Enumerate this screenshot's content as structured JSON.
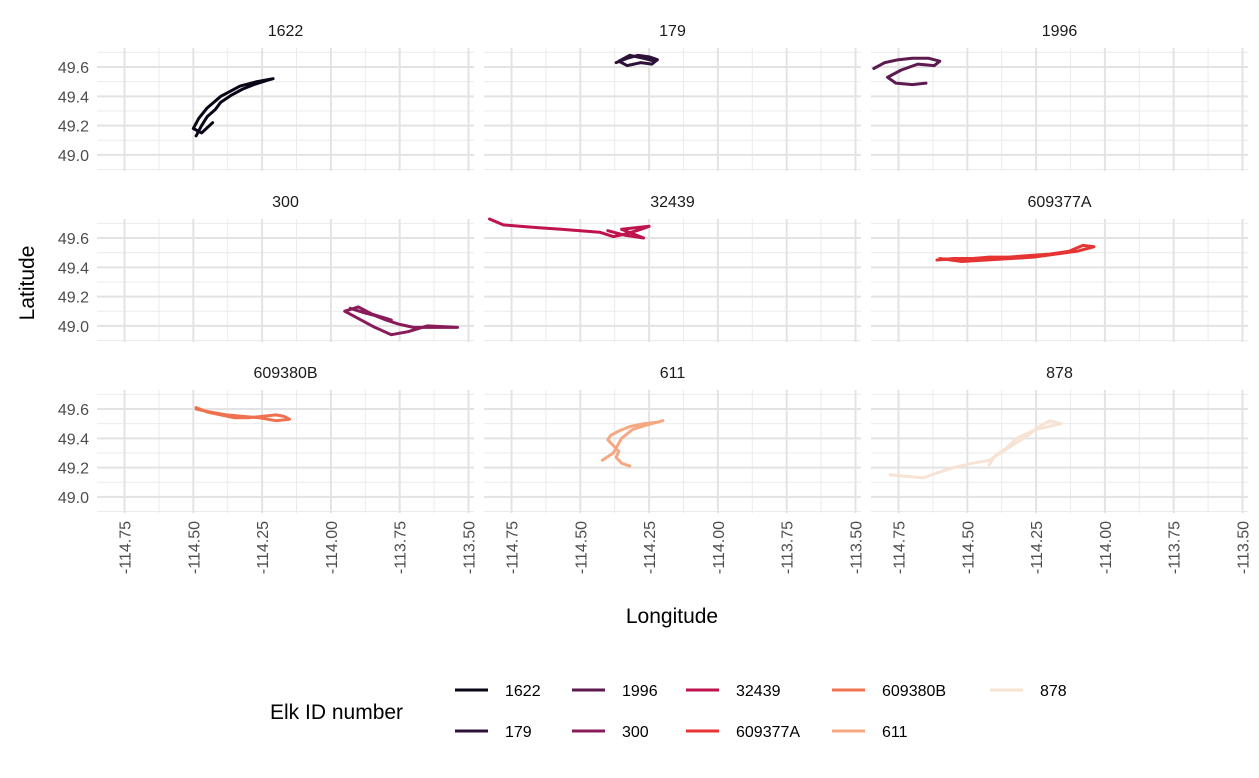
{
  "chart_data": {
    "type": "line",
    "facet_layout": "3x3 grid, shared axes",
    "xlabel": "Longitude",
    "ylabel": "Latitude",
    "xlim": [
      -114.85,
      -113.48
    ],
    "ylim": [
      48.89,
      49.73
    ],
    "x_ticks": [
      -114.75,
      -114.5,
      -114.25,
      -114.0,
      -113.75,
      -113.5
    ],
    "x_tick_labels": [
      "-114.75",
      "-114.50",
      "-114.25",
      "-114.00",
      "-113.75",
      "-113.50"
    ],
    "y_ticks": [
      49.0,
      49.2,
      49.4,
      49.6
    ],
    "y_tick_labels": [
      "49.0",
      "49.2",
      "49.4",
      "49.6"
    ],
    "grid": true,
    "legend": {
      "title": "Elk ID number",
      "position": "bottom",
      "columns": [
        [
          "1622",
          "179"
        ],
        [
          "1996",
          "300"
        ],
        [
          "32439",
          "609377A"
        ],
        [
          "609380B",
          "611"
        ],
        [
          "878"
        ]
      ]
    },
    "series": [
      {
        "name": "1622",
        "color": "#0b0518",
        "x": [
          -114.49,
          -114.47,
          -114.45,
          -114.42,
          -114.4,
          -114.36,
          -114.32,
          -114.28,
          -114.23,
          -114.21,
          -114.27,
          -114.33,
          -114.4,
          -114.45,
          -114.48,
          -114.5,
          -114.47,
          -114.43
        ],
        "y": [
          49.13,
          49.2,
          49.26,
          49.31,
          49.36,
          49.41,
          49.45,
          49.48,
          49.51,
          49.52,
          49.5,
          49.47,
          49.4,
          49.32,
          49.25,
          49.18,
          49.15,
          49.22
        ]
      },
      {
        "name": "179",
        "color": "#2c1239",
        "x": [
          -114.37,
          -114.33,
          -114.29,
          -114.25,
          -114.22,
          -114.24,
          -114.28,
          -114.33,
          -114.36,
          -114.32,
          -114.27,
          -114.23
        ],
        "y": [
          49.63,
          49.66,
          49.68,
          49.67,
          49.65,
          49.62,
          49.63,
          49.61,
          49.64,
          49.68,
          49.66,
          49.64
        ]
      },
      {
        "name": "1996",
        "color": "#5c1a4f",
        "x": [
          -114.84,
          -114.8,
          -114.75,
          -114.7,
          -114.64,
          -114.6,
          -114.62,
          -114.68,
          -114.74,
          -114.79,
          -114.76,
          -114.7,
          -114.65
        ],
        "y": [
          49.59,
          49.63,
          49.65,
          49.66,
          49.66,
          49.64,
          49.61,
          49.62,
          49.58,
          49.53,
          49.49,
          49.48,
          49.49
        ]
      },
      {
        "name": "300",
        "color": "#8a1b5a",
        "x": [
          -113.93,
          -113.88,
          -113.84,
          -113.8,
          -113.75,
          -113.7,
          -113.64,
          -113.54,
          -113.65,
          -113.72,
          -113.78,
          -113.84,
          -113.9,
          -113.95,
          -113.9,
          -113.85,
          -113.78
        ],
        "y": [
          49.12,
          49.09,
          49.07,
          49.04,
          49.01,
          48.99,
          48.99,
          48.99,
          49.0,
          48.96,
          48.94,
          48.99,
          49.05,
          49.1,
          49.13,
          49.08,
          49.04
        ]
      },
      {
        "name": "32439",
        "color": "#c0134e",
        "x": [
          -114.83,
          -114.78,
          -114.72,
          -114.65,
          -114.57,
          -114.5,
          -114.43,
          -114.38,
          -114.33,
          -114.28,
          -114.25,
          -114.3,
          -114.35,
          -114.31,
          -114.27,
          -114.34,
          -114.4
        ],
        "y": [
          49.73,
          49.69,
          49.68,
          49.67,
          49.66,
          49.65,
          49.64,
          49.61,
          49.63,
          49.66,
          49.68,
          49.67,
          49.66,
          49.63,
          49.6,
          49.62,
          49.65
        ]
      },
      {
        "name": "609377A",
        "color": "#e63432",
        "x": [
          -114.61,
          -114.55,
          -114.48,
          -114.42,
          -114.35,
          -114.28,
          -114.2,
          -114.13,
          -114.08,
          -114.04,
          -114.1,
          -114.18,
          -114.26,
          -114.34,
          -114.43,
          -114.52,
          -114.6
        ],
        "y": [
          49.45,
          49.46,
          49.46,
          49.47,
          49.47,
          49.48,
          49.49,
          49.51,
          49.55,
          49.54,
          49.51,
          49.49,
          49.47,
          49.46,
          49.45,
          49.44,
          49.46
        ]
      },
      {
        "name": "609380B",
        "color": "#f0714f",
        "x": [
          -114.49,
          -114.45,
          -114.4,
          -114.35,
          -114.3,
          -114.25,
          -114.2,
          -114.17,
          -114.15,
          -114.2,
          -114.26,
          -114.32,
          -114.38,
          -114.44,
          -114.49
        ],
        "y": [
          49.61,
          49.58,
          49.56,
          49.54,
          49.54,
          49.55,
          49.56,
          49.55,
          49.53,
          49.52,
          49.54,
          49.55,
          49.56,
          49.58,
          49.6
        ]
      },
      {
        "name": "611",
        "color": "#f4a983",
        "x": [
          -114.32,
          -114.35,
          -114.37,
          -114.36,
          -114.38,
          -114.4,
          -114.39,
          -114.36,
          -114.32,
          -114.27,
          -114.22,
          -114.2,
          -114.26,
          -114.31,
          -114.35,
          -114.38,
          -114.42
        ],
        "y": [
          49.21,
          49.23,
          49.27,
          49.31,
          49.35,
          49.39,
          49.42,
          49.45,
          49.48,
          49.5,
          49.51,
          49.52,
          49.49,
          49.46,
          49.4,
          49.3,
          49.25
        ]
      },
      {
        "name": "878",
        "color": "#f6e3d3",
        "x": [
          -114.78,
          -114.72,
          -114.66,
          -114.6,
          -114.55,
          -114.48,
          -114.42,
          -114.38,
          -114.33,
          -114.28,
          -114.24,
          -114.2,
          -114.16,
          -114.25,
          -114.32,
          -114.36,
          -114.4,
          -114.42
        ],
        "y": [
          49.15,
          49.14,
          49.13,
          49.17,
          49.2,
          49.23,
          49.25,
          49.3,
          49.36,
          49.42,
          49.48,
          49.52,
          49.5,
          49.46,
          49.4,
          49.33,
          49.28,
          49.22
        ]
      }
    ]
  }
}
